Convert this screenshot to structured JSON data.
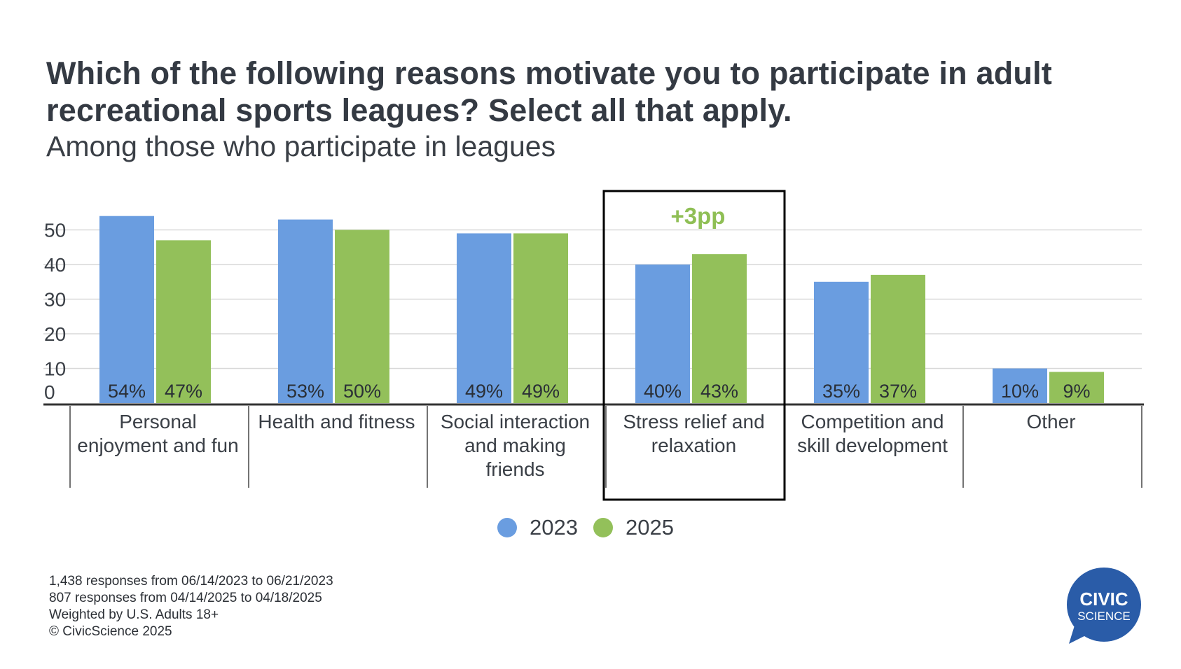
{
  "title": "Which of the following reasons motivate you to participate in adult recreational sports leagues? Select all that apply.",
  "subtitle": "Among those who participate in leagues",
  "colors": {
    "series_2023": "#6a9de0",
    "series_2025": "#93c05a",
    "annotation": "#8fbf55",
    "highlight_box": "#000000"
  },
  "chart_data": {
    "type": "bar",
    "title": "Which of the following reasons motivate you to participate in adult recreational sports leagues? Select all that apply.",
    "subtitle": "Among those who participate in leagues",
    "categories": [
      [
        "Personal",
        "enjoyment and fun"
      ],
      [
        "Health and fitness"
      ],
      [
        "Social interaction",
        "and making",
        "friends"
      ],
      [
        "Stress relief and",
        "relaxation"
      ],
      [
        "Competition and",
        "skill development"
      ],
      [
        "Other"
      ]
    ],
    "series": [
      {
        "name": "2023",
        "values": [
          54,
          53,
          49,
          40,
          35,
          10
        ],
        "labels": [
          "54%",
          "53%",
          "49%",
          "40%",
          "35%",
          "10%"
        ]
      },
      {
        "name": "2025",
        "values": [
          47,
          50,
          49,
          43,
          37,
          9
        ],
        "labels": [
          "47%",
          "50%",
          "49%",
          "43%",
          "37%",
          "9%"
        ]
      }
    ],
    "y_ticks": [
      0,
      10,
      20,
      30,
      40,
      50
    ],
    "ylim": [
      0,
      55
    ],
    "grid": true,
    "legend": "bottom-center",
    "highlight": {
      "category_index": 3,
      "annotation": "+3pp"
    }
  },
  "footnotes": [
    "1,438 responses from 06/14/2023 to 06/21/2023",
    "807 responses from 04/14/2025 to 04/18/2025",
    "Weighted by U.S. Adults 18+",
    "© CivicScience 2025"
  ],
  "logo": {
    "line1": "CIVIC",
    "line2": "SCIENCE",
    "color": "#2a5ca8"
  }
}
